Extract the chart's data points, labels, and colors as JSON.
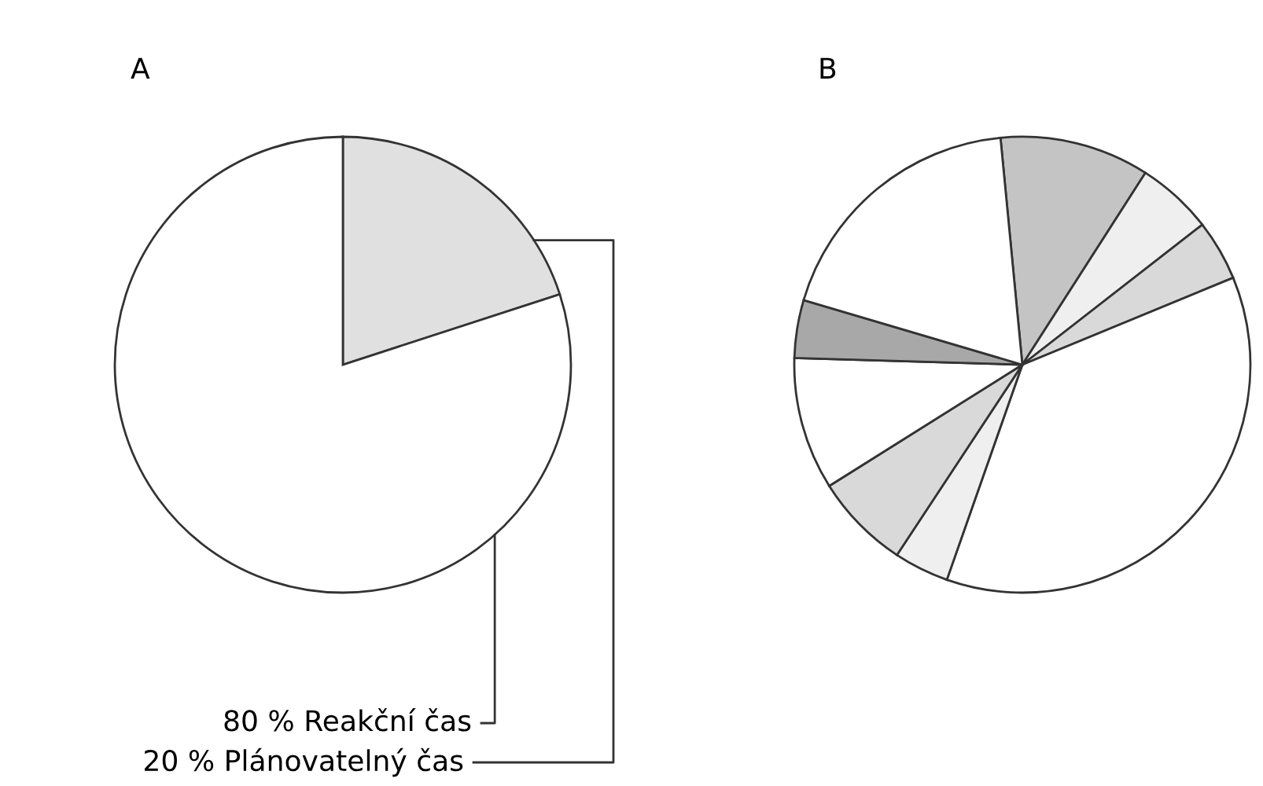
{
  "chart_data": [
    {
      "type": "pie",
      "title": "A",
      "categories": [
        "20 % Plánovatelný čas",
        "80 % Reakční čas"
      ],
      "values": [
        20,
        80
      ],
      "colors": [
        "#e0e0e0",
        "#ffffff"
      ]
    },
    {
      "type": "pie",
      "title": "B",
      "categories": [
        null,
        null,
        null,
        null,
        null,
        null,
        null,
        null,
        null
      ],
      "values": [
        10.6,
        5.4,
        4.3,
        36.6,
        3.9,
        6.8,
        9.4,
        4.1,
        18.9
      ],
      "colors": [
        "#c4c4c4",
        "#efefef",
        "#d9d9d9",
        "#ffffff",
        "#efefef",
        "#d9d9d9",
        "#ffffff",
        "#a8a8a8",
        "#ffffff"
      ]
    }
  ]
}
